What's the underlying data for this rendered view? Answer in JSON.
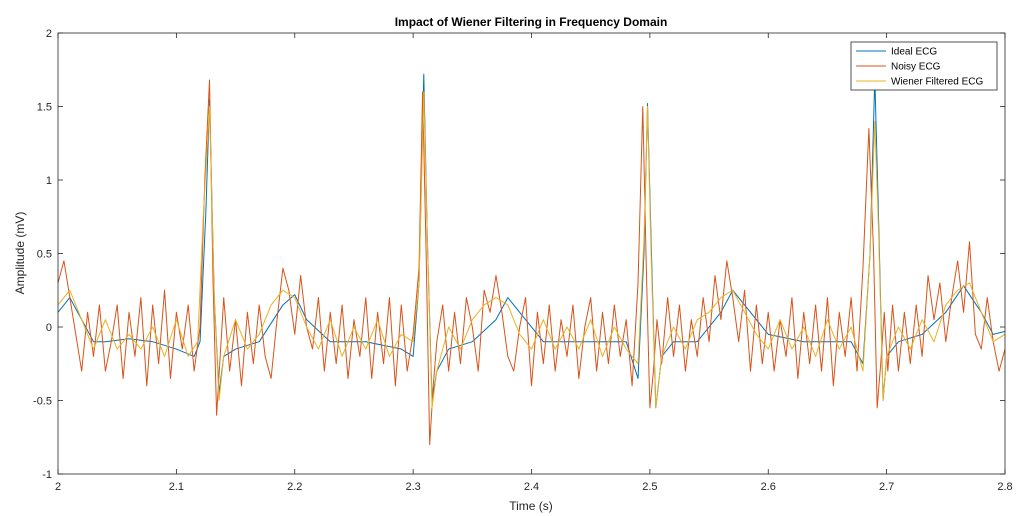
{
  "chart_data": {
    "type": "line",
    "title": "Impact of Wiener Filtering in Frequency Domain",
    "xlabel": "Time (s)",
    "ylabel": "Amplitude (mV)",
    "xlim": [
      2,
      2.8
    ],
    "ylim": [
      -1,
      2
    ],
    "xticks": [
      2,
      2.1,
      2.2,
      2.3,
      2.4,
      2.5,
      2.6,
      2.7,
      2.8
    ],
    "xtick_labels": [
      "2",
      "2.1",
      "2.2",
      "2.3",
      "2.4",
      "2.5",
      "2.6",
      "2.7",
      "2.8"
    ],
    "yticks": [
      -1,
      -0.5,
      0,
      0.5,
      1,
      1.5,
      2
    ],
    "ytick_labels": [
      "-1",
      "-0.5",
      "0",
      "0.5",
      "1",
      "1.5",
      "2"
    ],
    "grid": false,
    "legend_position": "top-right",
    "series": [
      {
        "name": "Ideal ECG",
        "color": "#0072BD",
        "x": [
          2.0,
          2.01,
          2.02,
          2.03,
          2.04,
          2.06,
          2.08,
          2.1,
          2.115,
          2.12,
          2.125,
          2.128,
          2.132,
          2.136,
          2.14,
          2.15,
          2.17,
          2.19,
          2.2,
          2.21,
          2.23,
          2.26,
          2.29,
          2.3,
          2.305,
          2.309,
          2.312,
          2.316,
          2.32,
          2.33,
          2.35,
          2.37,
          2.38,
          2.39,
          2.41,
          2.44,
          2.48,
          2.49,
          2.495,
          2.498,
          2.501,
          2.505,
          2.51,
          2.52,
          2.54,
          2.56,
          2.57,
          2.58,
          2.6,
          2.63,
          2.67,
          2.68,
          2.686,
          2.69,
          2.693,
          2.697,
          2.7,
          2.71,
          2.73,
          2.75,
          2.765,
          2.78,
          2.79,
          2.8
        ],
        "y": [
          0.1,
          0.2,
          0.05,
          -0.1,
          -0.1,
          -0.08,
          -0.1,
          -0.15,
          -0.2,
          -0.1,
          0.8,
          1.55,
          0.2,
          -0.45,
          -0.2,
          -0.15,
          -0.1,
          0.15,
          0.22,
          0.05,
          -0.1,
          -0.1,
          -0.15,
          -0.2,
          0.3,
          1.72,
          0.6,
          -0.5,
          -0.3,
          -0.15,
          -0.1,
          0.05,
          0.2,
          0.1,
          -0.1,
          -0.1,
          -0.1,
          -0.35,
          0.5,
          1.52,
          0.6,
          -0.55,
          -0.2,
          -0.1,
          -0.1,
          0.1,
          0.25,
          0.15,
          -0.05,
          -0.1,
          -0.1,
          -0.25,
          0.5,
          1.7,
          0.8,
          -0.5,
          -0.2,
          -0.1,
          -0.05,
          0.1,
          0.28,
          0.1,
          -0.05,
          -0.03
        ]
      },
      {
        "name": "Noisy ECG",
        "color": "#D95319",
        "x": [
          2.0,
          2.005,
          2.01,
          2.015,
          2.02,
          2.025,
          2.03,
          2.035,
          2.04,
          2.045,
          2.05,
          2.055,
          2.06,
          2.065,
          2.07,
          2.075,
          2.08,
          2.085,
          2.09,
          2.095,
          2.1,
          2.105,
          2.11,
          2.115,
          2.12,
          2.124,
          2.128,
          2.131,
          2.134,
          2.137,
          2.14,
          2.145,
          2.15,
          2.155,
          2.16,
          2.165,
          2.17,
          2.175,
          2.18,
          2.185,
          2.19,
          2.195,
          2.2,
          2.205,
          2.21,
          2.215,
          2.22,
          2.225,
          2.23,
          2.235,
          2.24,
          2.245,
          2.25,
          2.255,
          2.26,
          2.265,
          2.27,
          2.275,
          2.28,
          2.285,
          2.29,
          2.295,
          2.3,
          2.305,
          2.308,
          2.311,
          2.314,
          2.317,
          2.32,
          2.325,
          2.33,
          2.335,
          2.34,
          2.345,
          2.35,
          2.355,
          2.36,
          2.365,
          2.37,
          2.375,
          2.38,
          2.385,
          2.39,
          2.395,
          2.4,
          2.405,
          2.41,
          2.415,
          2.42,
          2.425,
          2.43,
          2.435,
          2.44,
          2.445,
          2.45,
          2.455,
          2.46,
          2.465,
          2.47,
          2.475,
          2.48,
          2.485,
          2.49,
          2.494,
          2.497,
          2.5,
          2.503,
          2.506,
          2.51,
          2.515,
          2.52,
          2.525,
          2.53,
          2.535,
          2.54,
          2.545,
          2.55,
          2.555,
          2.56,
          2.565,
          2.57,
          2.575,
          2.58,
          2.585,
          2.59,
          2.595,
          2.6,
          2.605,
          2.61,
          2.615,
          2.62,
          2.625,
          2.63,
          2.635,
          2.64,
          2.645,
          2.65,
          2.655,
          2.66,
          2.665,
          2.67,
          2.675,
          2.68,
          2.685,
          2.689,
          2.692,
          2.695,
          2.698,
          2.701,
          2.705,
          2.71,
          2.715,
          2.72,
          2.725,
          2.73,
          2.735,
          2.74,
          2.745,
          2.75,
          2.755,
          2.76,
          2.765,
          2.77,
          2.775,
          2.78,
          2.785,
          2.79,
          2.795,
          2.8
        ],
        "y": [
          0.3,
          0.45,
          0.2,
          -0.05,
          -0.3,
          0.1,
          -0.2,
          0.15,
          -0.3,
          -0.1,
          0.15,
          -0.35,
          0.1,
          -0.2,
          0.2,
          -0.4,
          0.15,
          -0.25,
          0.25,
          -0.35,
          0.1,
          -0.15,
          0.15,
          -0.3,
          0.0,
          1.0,
          1.68,
          0.3,
          -0.6,
          -0.2,
          0.2,
          -0.3,
          0.05,
          -0.4,
          0.1,
          -0.25,
          0.15,
          -0.2,
          -0.35,
          0.05,
          0.4,
          0.25,
          -0.05,
          0.35,
          0.0,
          -0.15,
          0.2,
          -0.3,
          0.1,
          -0.25,
          0.15,
          -0.35,
          0.05,
          -0.2,
          0.2,
          -0.35,
          0.1,
          -0.25,
          0.2,
          -0.4,
          0.15,
          -0.3,
          -0.05,
          0.4,
          1.6,
          0.5,
          -0.8,
          -0.4,
          -0.1,
          0.15,
          -0.3,
          0.1,
          -0.25,
          0.2,
          0.0,
          -0.3,
          0.25,
          0.1,
          0.35,
          0.1,
          -0.2,
          -0.3,
          0.0,
          0.2,
          -0.4,
          0.1,
          -0.25,
          0.15,
          -0.3,
          0.05,
          -0.2,
          0.15,
          -0.35,
          0.0,
          0.2,
          -0.3,
          0.1,
          -0.25,
          0.15,
          -0.2,
          0.05,
          -0.4,
          0.3,
          1.5,
          0.4,
          -0.55,
          -0.3,
          0.05,
          -0.25,
          0.2,
          -0.2,
          0.15,
          -0.3,
          0.05,
          -0.2,
          0.2,
          -0.1,
          0.35,
          0.05,
          0.45,
          0.2,
          -0.1,
          0.25,
          -0.3,
          0.15,
          -0.25,
          0.1,
          -0.3,
          0.05,
          -0.2,
          0.2,
          -0.35,
          0.1,
          -0.25,
          0.15,
          -0.3,
          0.2,
          -0.4,
          0.1,
          -0.2,
          0.2,
          -0.3,
          0.4,
          1.35,
          0.5,
          -0.55,
          -0.25,
          0.1,
          -0.3,
          0.15,
          -0.3,
          0.1,
          -0.25,
          0.15,
          -0.2,
          0.35,
          0.05,
          0.3,
          -0.1,
          0.2,
          0.45,
          0.1,
          0.58,
          -0.05,
          -0.15,
          0.2,
          -0.1,
          -0.3,
          -0.15
        ]
      },
      {
        "name": "Wiener Filtered ECG",
        "color": "#EDB120",
        "x": [
          2.0,
          2.01,
          2.02,
          2.03,
          2.04,
          2.05,
          2.06,
          2.07,
          2.08,
          2.09,
          2.1,
          2.11,
          2.118,
          2.123,
          2.128,
          2.132,
          2.136,
          2.14,
          2.15,
          2.16,
          2.17,
          2.18,
          2.19,
          2.2,
          2.21,
          2.22,
          2.23,
          2.24,
          2.25,
          2.26,
          2.27,
          2.28,
          2.29,
          2.3,
          2.305,
          2.309,
          2.312,
          2.316,
          2.32,
          2.33,
          2.34,
          2.35,
          2.36,
          2.37,
          2.38,
          2.39,
          2.4,
          2.41,
          2.42,
          2.43,
          2.44,
          2.45,
          2.46,
          2.47,
          2.48,
          2.49,
          2.495,
          2.498,
          2.501,
          2.505,
          2.51,
          2.52,
          2.53,
          2.54,
          2.55,
          2.56,
          2.57,
          2.58,
          2.59,
          2.6,
          2.61,
          2.62,
          2.63,
          2.64,
          2.65,
          2.66,
          2.67,
          2.68,
          2.686,
          2.69,
          2.693,
          2.697,
          2.7,
          2.71,
          2.72,
          2.73,
          2.74,
          2.75,
          2.76,
          2.77,
          2.78,
          2.79,
          2.8
        ],
        "y": [
          0.15,
          0.25,
          0.05,
          -0.15,
          0.05,
          -0.15,
          -0.05,
          -0.15,
          0.0,
          -0.2,
          0.05,
          -0.2,
          -0.1,
          0.8,
          1.5,
          0.2,
          -0.5,
          -0.2,
          0.05,
          -0.15,
          -0.05,
          0.15,
          0.25,
          0.2,
          0.0,
          -0.15,
          0.05,
          -0.2,
          0.0,
          -0.15,
          0.05,
          -0.2,
          -0.05,
          -0.1,
          0.3,
          1.6,
          0.6,
          -0.55,
          -0.3,
          0.0,
          -0.15,
          0.05,
          0.15,
          0.2,
          0.15,
          -0.05,
          -0.15,
          0.05,
          -0.15,
          0.0,
          -0.15,
          0.05,
          -0.2,
          0.0,
          -0.15,
          -0.25,
          0.6,
          1.5,
          0.5,
          -0.55,
          -0.2,
          0.0,
          -0.15,
          0.05,
          0.1,
          0.2,
          0.25,
          0.1,
          -0.05,
          -0.15,
          0.05,
          -0.15,
          0.0,
          -0.2,
          0.05,
          -0.15,
          0.0,
          -0.3,
          0.5,
          1.4,
          0.7,
          -0.5,
          -0.2,
          0.0,
          -0.15,
          0.05,
          -0.1,
          0.15,
          0.25,
          0.3,
          0.1,
          -0.1,
          -0.05
        ]
      }
    ]
  }
}
